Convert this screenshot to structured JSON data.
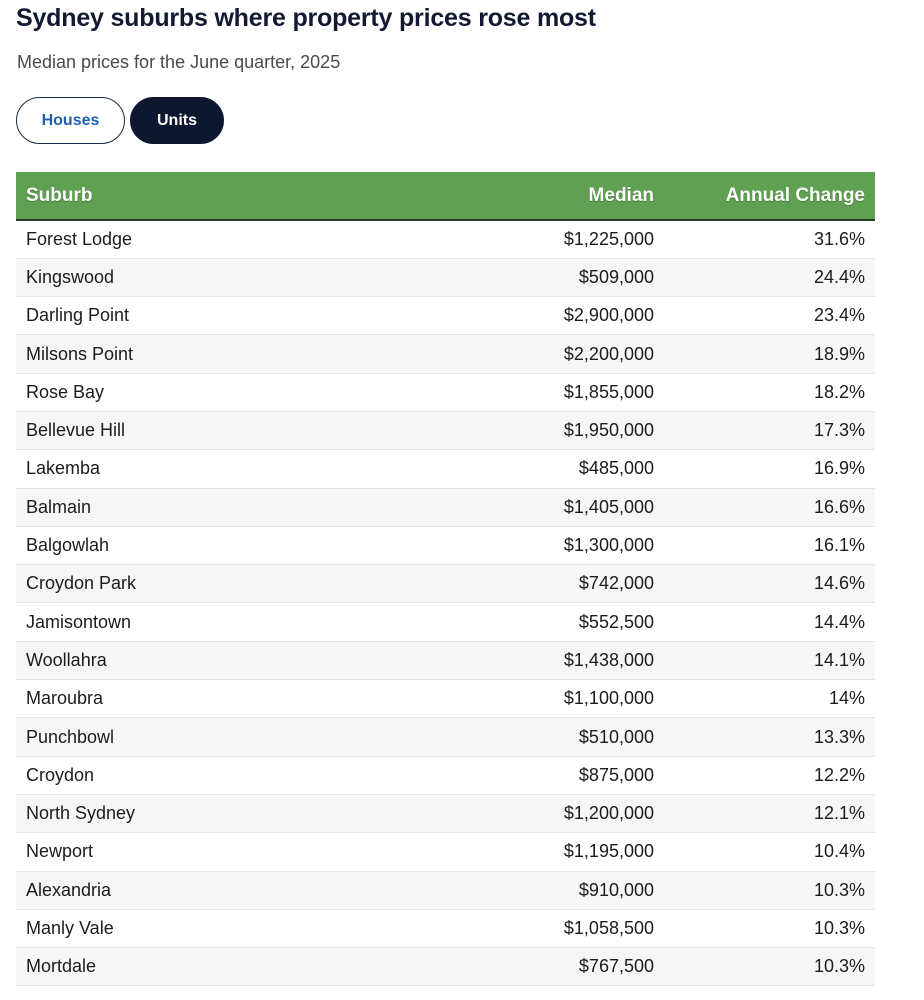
{
  "header": {
    "title": "Sydney suburbs where property prices rose most",
    "subtitle": "Median prices for the June quarter, 2025"
  },
  "toggle": {
    "options": [
      "Houses",
      "Units"
    ],
    "selected": "Units"
  },
  "colors": {
    "header_bg": "#5fa052",
    "selected_toggle_bg": "#0e1730",
    "unselected_toggle_text": "#1e5fb0"
  },
  "table": {
    "columns": [
      "Suburb",
      "Median",
      "Annual Change"
    ],
    "rows": [
      {
        "suburb": "Forest Lodge",
        "median": "$1,225,000",
        "change": "31.6%"
      },
      {
        "suburb": "Kingswood",
        "median": "$509,000",
        "change": "24.4%"
      },
      {
        "suburb": "Darling Point",
        "median": "$2,900,000",
        "change": "23.4%"
      },
      {
        "suburb": "Milsons Point",
        "median": "$2,200,000",
        "change": "18.9%"
      },
      {
        "suburb": "Rose Bay",
        "median": "$1,855,000",
        "change": "18.2%"
      },
      {
        "suburb": "Bellevue Hill",
        "median": "$1,950,000",
        "change": "17.3%"
      },
      {
        "suburb": "Lakemba",
        "median": "$485,000",
        "change": "16.9%"
      },
      {
        "suburb": "Balmain",
        "median": "$1,405,000",
        "change": "16.6%"
      },
      {
        "suburb": "Balgowlah",
        "median": "$1,300,000",
        "change": "16.1%"
      },
      {
        "suburb": "Croydon Park",
        "median": "$742,000",
        "change": "14.6%"
      },
      {
        "suburb": "Jamisontown",
        "median": "$552,500",
        "change": "14.4%"
      },
      {
        "suburb": "Woollahra",
        "median": "$1,438,000",
        "change": "14.1%"
      },
      {
        "suburb": "Maroubra",
        "median": "$1,100,000",
        "change": "14%"
      },
      {
        "suburb": "Punchbowl",
        "median": "$510,000",
        "change": "13.3%"
      },
      {
        "suburb": "Croydon",
        "median": "$875,000",
        "change": "12.2%"
      },
      {
        "suburb": "North Sydney",
        "median": "$1,200,000",
        "change": "12.1%"
      },
      {
        "suburb": "Newport",
        "median": "$1,195,000",
        "change": "10.4%"
      },
      {
        "suburb": "Alexandria",
        "median": "$910,000",
        "change": "10.3%"
      },
      {
        "suburb": "Manly Vale",
        "median": "$1,058,500",
        "change": "10.3%"
      },
      {
        "suburb": "Mortdale",
        "median": "$767,500",
        "change": "10.3%"
      }
    ]
  }
}
